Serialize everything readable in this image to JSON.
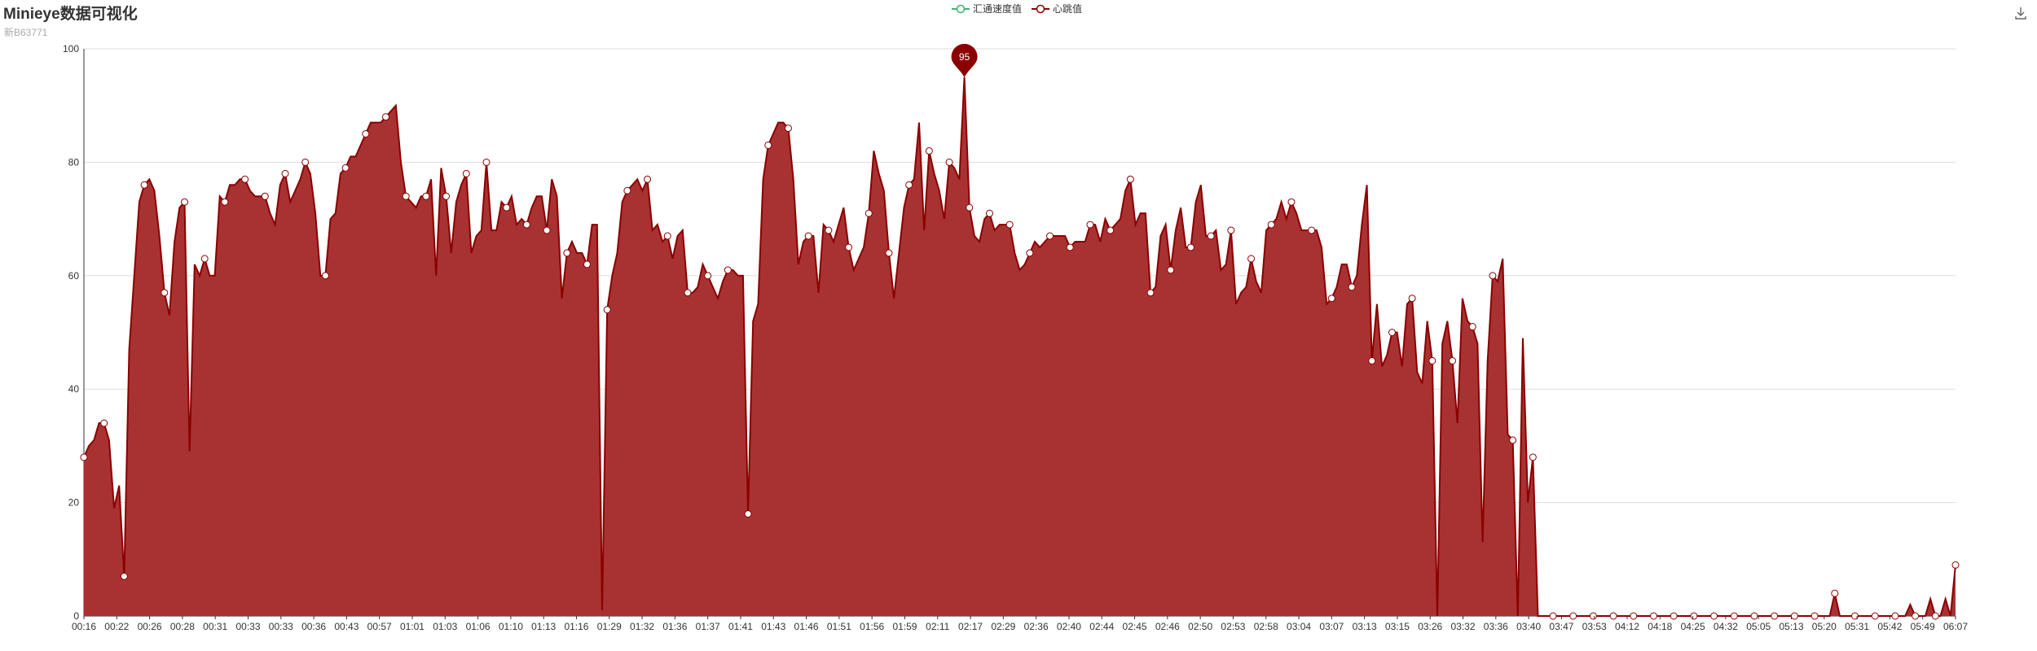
{
  "header": {
    "title": "Minieye数据可视化",
    "subtitle": "新B63771"
  },
  "legend": [
    {
      "name": "汇通速度值",
      "color": "#3cb371"
    },
    {
      "name": "心跳值",
      "color": "#8b0000"
    }
  ],
  "toolbar": {
    "download_icon": "download-icon"
  },
  "chart_data": {
    "type": "area",
    "ylim": [
      0,
      100
    ],
    "yticks": [
      0,
      20,
      40,
      60,
      80,
      100
    ],
    "grid": true,
    "legend_position": "top-center",
    "colors": {
      "area": "#a83232",
      "line": "#8b0000",
      "marker_fill": "#ffffff",
      "pin": "#8b0000"
    },
    "xtick_labels": [
      "00:16",
      "00:22",
      "00:26",
      "00:28",
      "00:31",
      "00:33",
      "00:33",
      "00:36",
      "00:43",
      "00:57",
      "01:01",
      "01:03",
      "01:06",
      "01:10",
      "01:13",
      "01:16",
      "01:29",
      "01:32",
      "01:36",
      "01:37",
      "01:41",
      "01:43",
      "01:46",
      "01:51",
      "01:56",
      "01:59",
      "02:11",
      "02:17",
      "02:29",
      "02:36",
      "02:40",
      "02:44",
      "02:45",
      "02:46",
      "02:50",
      "02:53",
      "02:58",
      "03:04",
      "03:07",
      "03:13",
      "03:15",
      "03:26",
      "03:32",
      "03:36",
      "03:40",
      "03:47",
      "03:53",
      "04:12",
      "04:18",
      "04:25",
      "04:32",
      "05:05",
      "05:13",
      "05:20",
      "05:31",
      "05:42",
      "05:49",
      "06:07"
    ],
    "series": [
      {
        "name": "心跳值",
        "values": [
          28,
          30,
          31,
          34,
          34,
          31,
          19,
          23,
          7,
          47,
          60,
          73,
          76,
          77,
          75,
          67,
          57,
          53,
          66,
          72,
          73,
          29,
          62,
          60,
          63,
          60,
          60,
          74,
          73,
          76,
          76,
          77,
          77,
          75,
          74,
          74,
          74,
          71,
          69,
          76,
          78,
          73,
          75,
          77,
          80,
          78,
          71,
          60,
          60,
          70,
          71,
          78,
          79,
          81,
          81,
          83,
          85,
          87,
          87,
          87,
          88,
          89,
          90,
          80,
          74,
          73,
          72,
          74,
          74,
          77,
          60,
          79,
          74,
          64,
          73,
          76,
          78,
          64,
          67,
          68,
          80,
          68,
          68,
          73,
          72,
          74,
          69,
          70,
          69,
          72,
          74,
          74,
          68,
          77,
          74,
          56,
          64,
          66,
          64,
          64,
          62,
          69,
          69,
          1,
          54,
          60,
          64,
          73,
          75,
          76,
          77,
          75,
          77,
          68,
          69,
          66,
          67,
          63,
          67,
          68,
          57,
          57,
          58,
          62,
          60,
          58,
          56,
          59,
          61,
          61,
          60,
          60,
          18,
          52,
          55,
          77,
          83,
          85,
          87,
          87,
          86,
          77,
          62,
          66,
          67,
          67,
          57,
          69,
          68,
          66,
          69,
          72,
          65,
          61,
          63,
          65,
          71,
          82,
          78,
          75,
          64,
          56,
          64,
          72,
          76,
          77,
          87,
          68,
          82,
          78,
          75,
          70,
          80,
          79,
          77,
          95,
          72,
          67,
          66,
          70,
          71,
          68,
          69,
          69,
          69,
          64,
          61,
          62,
          64,
          66,
          65,
          66,
          67,
          67,
          67,
          67,
          65,
          66,
          66,
          66,
          69,
          69,
          66,
          70,
          68,
          69,
          70,
          75,
          77,
          69,
          71,
          71,
          57,
          58,
          67,
          69,
          61,
          68,
          72,
          65,
          65,
          73,
          76,
          67,
          67,
          68,
          61,
          62,
          68,
          55,
          57,
          58,
          63,
          59,
          57,
          68,
          69,
          70,
          73,
          70,
          73,
          71,
          68,
          68,
          68,
          68,
          65,
          55,
          56,
          58,
          62,
          62,
          58,
          60,
          69,
          76,
          45,
          55,
          44,
          46,
          50,
          50,
          44,
          55,
          56,
          43,
          41,
          52,
          45,
          0,
          48,
          52,
          45,
          34,
          56,
          52,
          51,
          48,
          13,
          45,
          60,
          59,
          63,
          32,
          31,
          0,
          49,
          20,
          28,
          0,
          0,
          0,
          0,
          0,
          0,
          0,
          0,
          0,
          0,
          0,
          0,
          0,
          0,
          0,
          0,
          0,
          0,
          0,
          0,
          0,
          0,
          0,
          0,
          0,
          0,
          0,
          0,
          0,
          0,
          0,
          0,
          0,
          0,
          0,
          0,
          0,
          0,
          0,
          0,
          0,
          0,
          0,
          0,
          0,
          0,
          0,
          0,
          0,
          0,
          0,
          0,
          0,
          0,
          0,
          0,
          0,
          0,
          0,
          4,
          0,
          0,
          0,
          0,
          0,
          0,
          0,
          0,
          0,
          0,
          0,
          0,
          0,
          0,
          2,
          0,
          0,
          0,
          3,
          0,
          0,
          3,
          0,
          9
        ]
      }
    ],
    "max_pin": {
      "label": "95"
    }
  }
}
